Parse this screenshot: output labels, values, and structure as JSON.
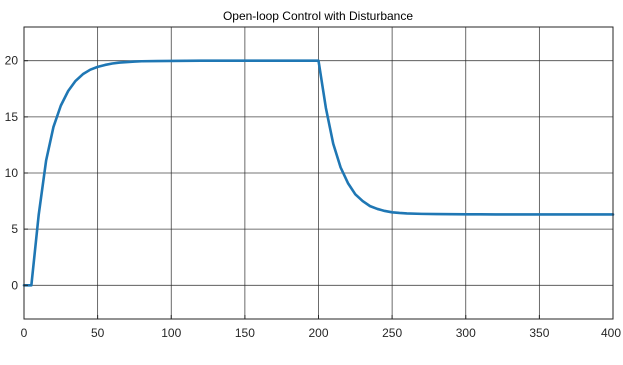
{
  "chart_data": {
    "type": "line",
    "title": "Open-loop Control with Disturbance",
    "xlabel": "",
    "ylabel": "",
    "xlim": [
      0,
      400
    ],
    "ylim": [
      -3,
      23
    ],
    "xticks": [
      0,
      50,
      100,
      150,
      200,
      250,
      300,
      350,
      400
    ],
    "yticks": [
      0,
      5,
      10,
      15,
      20
    ],
    "grid": true,
    "line_color": "#1f77b4",
    "series": [
      {
        "x": [
          0,
          5,
          10,
          15,
          20,
          25,
          30,
          35,
          40,
          45,
          50,
          55,
          60,
          65,
          70,
          75,
          80,
          90,
          100,
          110,
          120,
          130,
          140,
          150,
          160,
          170,
          180,
          190,
          200,
          205,
          210,
          215,
          220,
          225,
          230,
          235,
          240,
          245,
          250,
          255,
          260,
          270,
          280,
          290,
          300,
          310,
          320,
          340,
          360,
          380,
          400
        ],
        "y": [
          0,
          0,
          6.3,
          11.1,
          14.1,
          16.0,
          17.3,
          18.2,
          18.8,
          19.2,
          19.45,
          19.62,
          19.75,
          19.83,
          19.88,
          19.92,
          19.95,
          19.97,
          19.98,
          19.99,
          20,
          20,
          20,
          20,
          20,
          20,
          20,
          20,
          20,
          15.8,
          12.6,
          10.5,
          9.1,
          8.1,
          7.5,
          7.05,
          6.8,
          6.62,
          6.5,
          6.44,
          6.4,
          6.36,
          6.34,
          6.33,
          6.32,
          6.32,
          6.31,
          6.31,
          6.31,
          6.31,
          6.31
        ]
      }
    ]
  }
}
